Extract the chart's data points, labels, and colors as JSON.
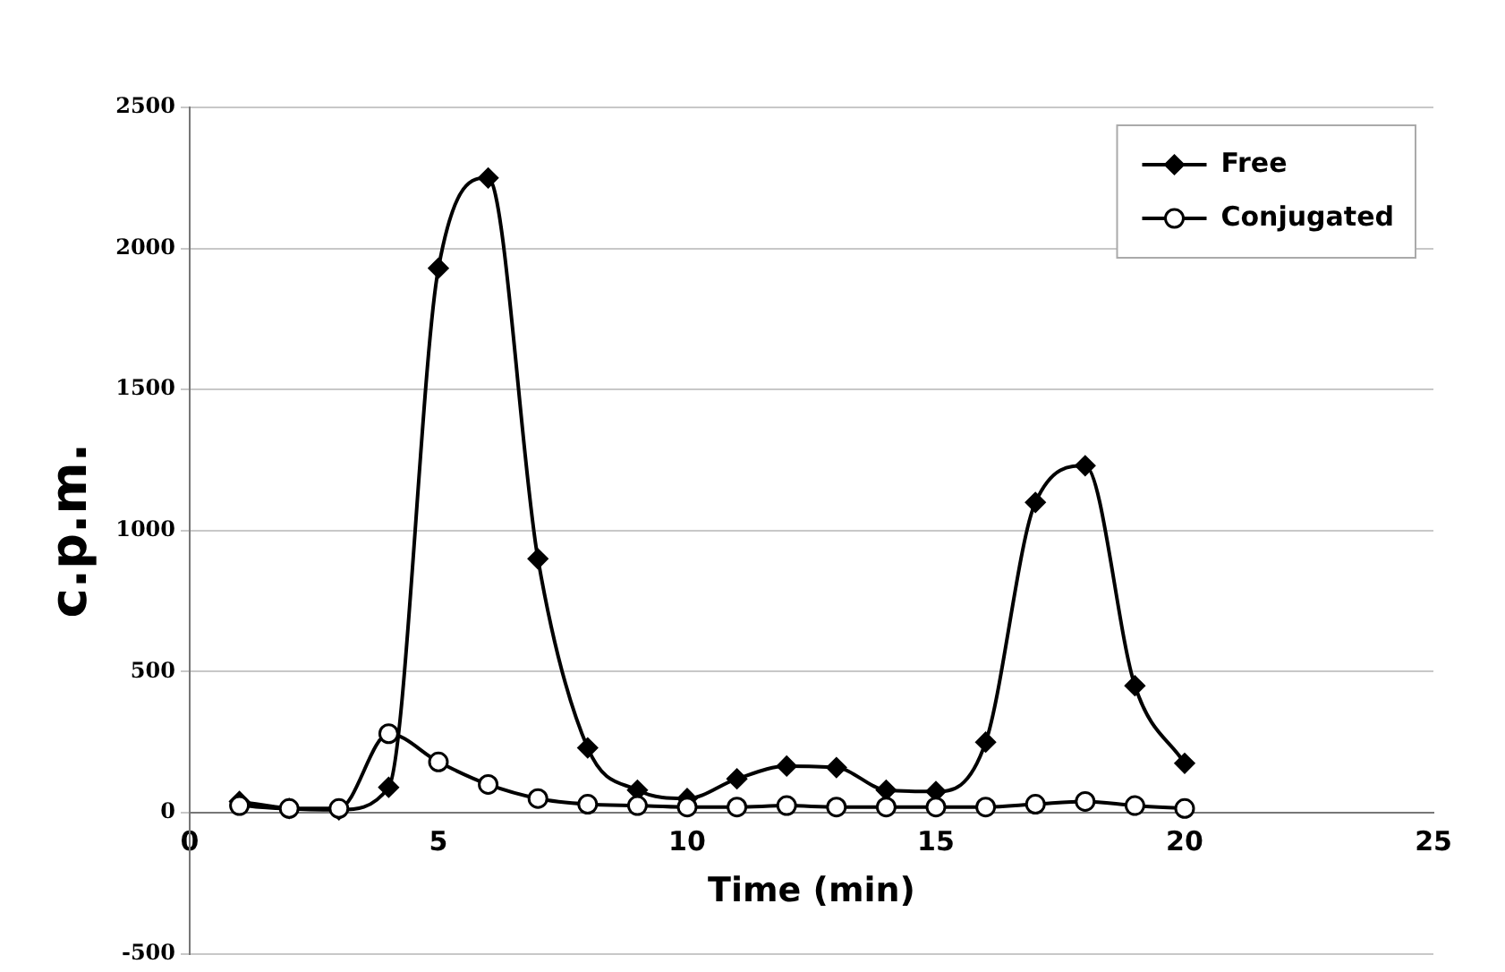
{
  "chart_data": {
    "type": "line",
    "xlabel": "Time (min)",
    "ylabel": "c.p.m.",
    "x": [
      1,
      2,
      3,
      4,
      5,
      6,
      7,
      8,
      9,
      10,
      11,
      12,
      13,
      14,
      15,
      16,
      17,
      18,
      19,
      20
    ],
    "series": [
      {
        "name": "Free",
        "color": "#000000",
        "marker": "diamond",
        "values": [
          40,
          15,
          10,
          90,
          1930,
          2250,
          900,
          230,
          80,
          50,
          120,
          165,
          160,
          80,
          75,
          250,
          1100,
          1230,
          450,
          175
        ]
      },
      {
        "name": "Conjugated",
        "color": "#000000",
        "marker": "circle",
        "values": [
          25,
          15,
          15,
          280,
          180,
          100,
          50,
          30,
          25,
          20,
          20,
          25,
          20,
          20,
          20,
          20,
          30,
          40,
          25,
          15
        ]
      }
    ],
    "xlim": [
      0,
      25
    ],
    "xticks": [
      0,
      5,
      10,
      15,
      20,
      25
    ],
    "ylim": [
      -500,
      2500
    ],
    "yticks": [
      -500,
      0,
      500,
      1000,
      1500,
      2000,
      2500
    ],
    "grid": "y",
    "legend": "top right",
    "line_style": "solid"
  }
}
